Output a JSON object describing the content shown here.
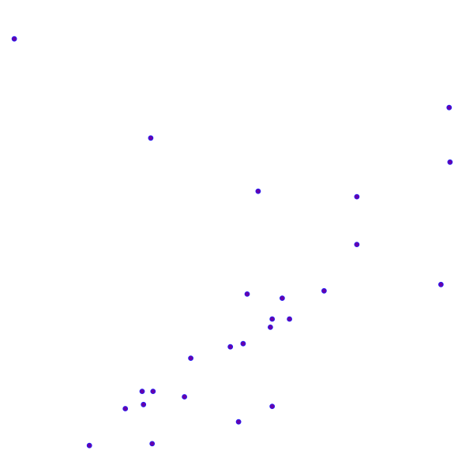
{
  "chart_data": {
    "type": "scatter",
    "title": "",
    "xlabel": "",
    "ylabel": "",
    "grid": false,
    "axes_visible": false,
    "xlim": [
      0,
      100
    ],
    "ylim": [
      0,
      100
    ],
    "marker_fill": "#6600aa",
    "marker_stroke": "#1f1fff",
    "points": [
      {
        "x": 2.8,
        "y": 91.8
      },
      {
        "x": 98.4,
        "y": 76.7
      },
      {
        "x": 98.6,
        "y": 64.7
      },
      {
        "x": 32.8,
        "y": 70.0
      },
      {
        "x": 56.4,
        "y": 58.3
      },
      {
        "x": 78.1,
        "y": 57.1
      },
      {
        "x": 78.1,
        "y": 46.6
      },
      {
        "x": 96.6,
        "y": 37.8
      },
      {
        "x": 70.9,
        "y": 36.4
      },
      {
        "x": 54.0,
        "y": 35.7
      },
      {
        "x": 61.7,
        "y": 34.8
      },
      {
        "x": 59.5,
        "y": 30.2
      },
      {
        "x": 63.3,
        "y": 30.2
      },
      {
        "x": 59.1,
        "y": 28.4
      },
      {
        "x": 53.1,
        "y": 24.8
      },
      {
        "x": 50.3,
        "y": 24.1
      },
      {
        "x": 41.6,
        "y": 21.6
      },
      {
        "x": 30.9,
        "y": 14.3
      },
      {
        "x": 33.3,
        "y": 14.3
      },
      {
        "x": 40.2,
        "y": 13.1
      },
      {
        "x": 31.2,
        "y": 11.4
      },
      {
        "x": 27.2,
        "y": 10.5
      },
      {
        "x": 59.5,
        "y": 11.0
      },
      {
        "x": 52.1,
        "y": 7.6
      },
      {
        "x": 19.3,
        "y": 2.4
      },
      {
        "x": 33.1,
        "y": 2.8
      }
    ]
  }
}
